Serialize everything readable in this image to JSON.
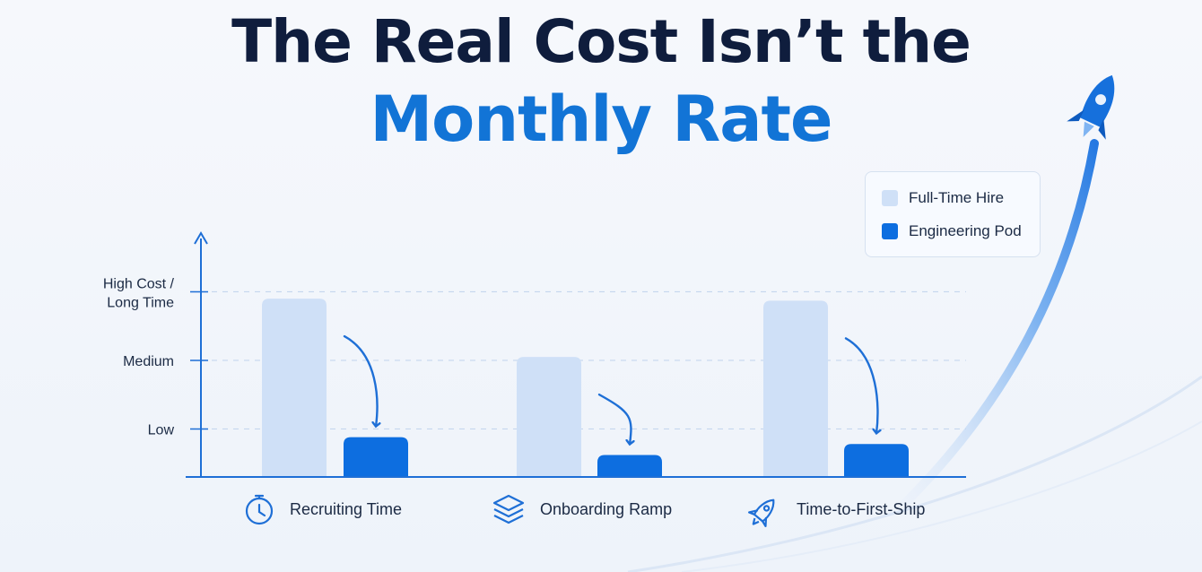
{
  "title_line1": "The Real Cost Isn’t the",
  "title_line2": "Monthly Rate",
  "colors": {
    "full_time": "#cfe0f7",
    "pod": "#0d6ee0",
    "axis": "#1e6fd6",
    "title_dark": "#0f1d3d",
    "title_blue": "#1274d6"
  },
  "chart_data": {
    "type": "bar",
    "categories": [
      "Recruiting Time",
      "Onboarding Ramp",
      "Time-to-First-Ship"
    ],
    "category_icons": [
      "stopwatch-icon",
      "layers-icon",
      "rocket-icon"
    ],
    "series": [
      {
        "name": "Full-Time Hire",
        "values": [
          2.9,
          2.05,
          2.87
        ]
      },
      {
        "name": "Engineering Pod",
        "values": [
          0.88,
          0.62,
          0.78
        ]
      }
    ],
    "y_ticks": [
      {
        "value": 1,
        "label": "Low"
      },
      {
        "value": 2,
        "label": "Medium"
      },
      {
        "value": 3,
        "label_lines": [
          "High Cost /",
          "Long Time"
        ]
      }
    ],
    "ylim": [
      0,
      3.5
    ],
    "grid": true,
    "legend_position": "top-right",
    "annotation": "arrows from each Full-Time Hire bar down to the Engineering Pod bar"
  }
}
